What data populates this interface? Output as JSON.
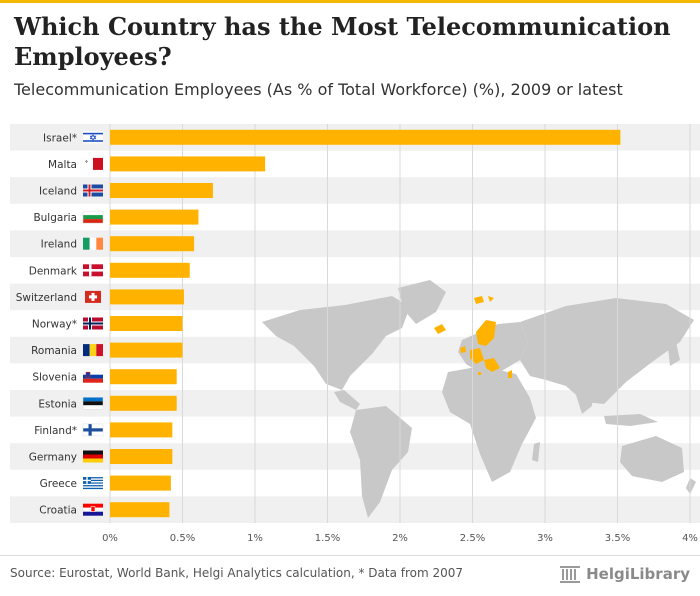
{
  "header": {
    "title": "Which Country has the Most Telecommunication Employees?",
    "subtitle": "Telecommunication Employees (As % of Total Workforce) (%), 2009 or latest"
  },
  "footer": {
    "source": "Source: Eurostat, World Bank, Helgi Analytics calculation, * Data from 2007",
    "logo_text": "HelgiLibrary"
  },
  "colors": {
    "bar": "#ffb300",
    "band": "#f0f0f0",
    "grid": "#d9d9d9",
    "map_land": "#c8c8c8",
    "map_highlight": "#ffb300"
  },
  "chart_data": {
    "type": "bar",
    "orientation": "horizontal",
    "title": "Which Country has the Most Telecommunication Employees?",
    "subtitle": "Telecommunication Employees (As % of Total Workforce) (%), 2009 or latest",
    "categories": [
      "Israel*",
      "Malta",
      "Iceland",
      "Bulgaria",
      "Ireland",
      "Denmark",
      "Switzerland",
      "Norway*",
      "Romania",
      "Slovenia",
      "Estonia",
      "Finland*",
      "Germany",
      "Greece",
      "Croatia"
    ],
    "flags": [
      "israel-flag",
      "malta-flag",
      "iceland-flag",
      "bulgaria-flag",
      "ireland-flag",
      "denmark-flag",
      "switzerland-flag",
      "norway-flag",
      "romania-flag",
      "slovenia-flag",
      "estonia-flag",
      "finland-flag",
      "germany-flag",
      "greece-flag",
      "croatia-flag"
    ],
    "values": [
      3.52,
      1.07,
      0.71,
      0.61,
      0.58,
      0.55,
      0.51,
      0.5,
      0.5,
      0.46,
      0.46,
      0.43,
      0.43,
      0.42,
      0.41
    ],
    "xlim": [
      0,
      4
    ],
    "xticks": [
      0,
      0.5,
      1,
      1.5,
      2,
      2.5,
      3,
      3.5,
      4
    ],
    "xtick_labels": [
      "0%",
      "0.5%",
      "1%",
      "1.5%",
      "2%",
      "2.5%",
      "3%",
      "3.5%",
      "4%"
    ],
    "xlabel": "",
    "ylabel": "",
    "grid": true
  }
}
